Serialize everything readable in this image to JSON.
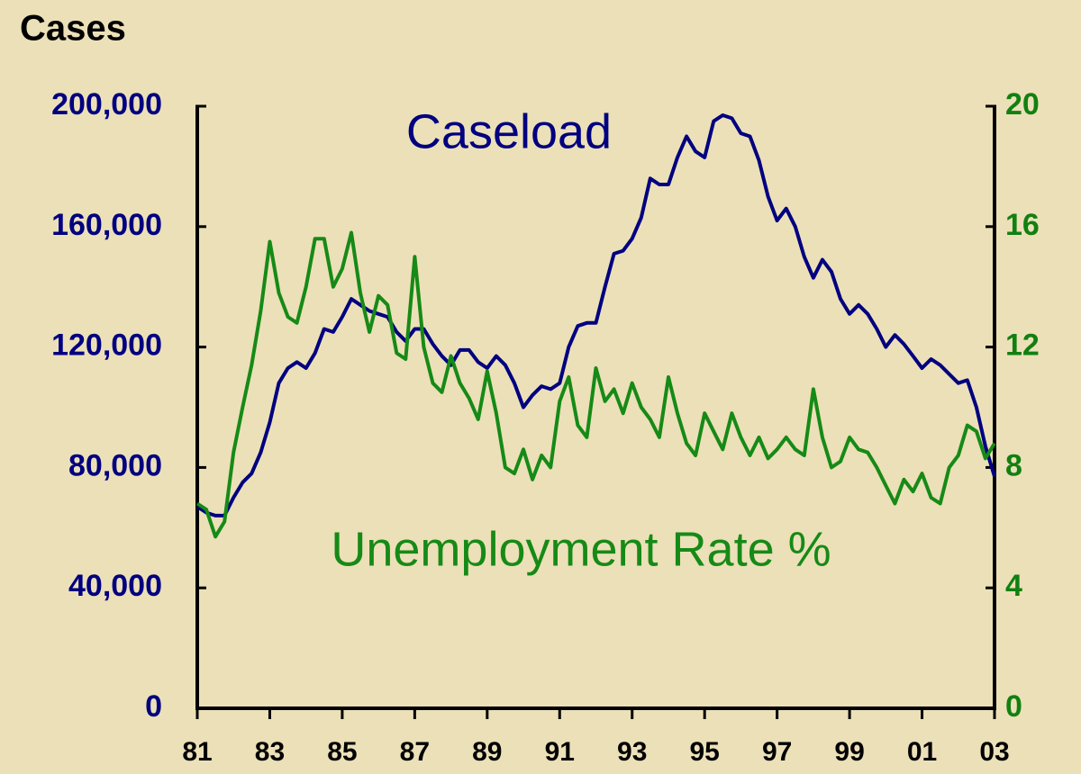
{
  "chart_data": {
    "type": "line",
    "y_label": "Cases",
    "x": [
      1981,
      1981.25,
      1981.5,
      1981.75,
      1982,
      1982.25,
      1982.5,
      1982.75,
      1983,
      1983.25,
      1983.5,
      1983.75,
      1984,
      1984.25,
      1984.5,
      1984.75,
      1985,
      1985.25,
      1985.5,
      1985.75,
      1986,
      1986.25,
      1986.5,
      1986.75,
      1987,
      1987.25,
      1987.5,
      1987.75,
      1988,
      1988.25,
      1988.5,
      1988.75,
      1989,
      1989.25,
      1989.5,
      1989.75,
      1990,
      1990.25,
      1990.5,
      1990.75,
      1991,
      1991.25,
      1991.5,
      1991.75,
      1992,
      1992.25,
      1992.5,
      1992.75,
      1993,
      1993.25,
      1993.5,
      1993.75,
      1994,
      1994.25,
      1994.5,
      1994.75,
      1995,
      1995.25,
      1995.5,
      1995.75,
      1996,
      1996.25,
      1996.5,
      1996.75,
      1997,
      1997.25,
      1997.5,
      1997.75,
      1998,
      1998.25,
      1998.5,
      1998.75,
      1999,
      1999.25,
      1999.5,
      1999.75,
      2000,
      2000.25,
      2000.5,
      2000.75,
      2001,
      2001.25,
      2001.5,
      2001.75,
      2002,
      2002.25,
      2002.5,
      2002.75,
      2003
    ],
    "series": [
      {
        "name": "Caseload",
        "color": "#000080",
        "axis": "y",
        "values": [
          67000,
          65000,
          64000,
          64000,
          70000,
          75000,
          78000,
          85000,
          95000,
          108000,
          113000,
          115000,
          113000,
          118000,
          126000,
          125000,
          130000,
          136000,
          134000,
          132000,
          131000,
          130000,
          125000,
          122000,
          126000,
          126000,
          121000,
          117000,
          114000,
          119000,
          119000,
          115000,
          113000,
          117000,
          114000,
          108000,
          100000,
          104000,
          107000,
          106000,
          108000,
          120000,
          127000,
          128000,
          128000,
          140000,
          151000,
          152000,
          156000,
          163000,
          176000,
          174000,
          174000,
          183000,
          190000,
          185000,
          183000,
          195000,
          197000,
          196000,
          191000,
          190000,
          182000,
          170000,
          162000,
          166000,
          160000,
          150000,
          143000,
          149000,
          145000,
          136000,
          131000,
          134000,
          131000,
          126000,
          120000,
          124000,
          121000,
          117000,
          113000,
          116000,
          114000,
          111000,
          108000,
          109000,
          100000,
          87000,
          77000
        ]
      },
      {
        "name": "Unemployment Rate %",
        "color": "#168a16",
        "axis": "y2",
        "values": [
          6.8,
          6.6,
          5.7,
          6.2,
          8.5,
          10.0,
          11.4,
          13.2,
          15.5,
          13.8,
          13.0,
          12.8,
          14.0,
          15.6,
          15.6,
          14.0,
          14.6,
          15.8,
          13.8,
          12.5,
          13.7,
          13.4,
          11.8,
          11.6,
          15.0,
          12.0,
          10.8,
          10.5,
          11.7,
          10.8,
          10.3,
          9.6,
          11.2,
          9.8,
          8.0,
          7.8,
          8.6,
          7.6,
          8.4,
          8.0,
          10.2,
          11.0,
          9.4,
          9.0,
          11.3,
          10.2,
          10.6,
          9.8,
          10.8,
          10.0,
          9.6,
          9.0,
          11.0,
          9.8,
          8.8,
          8.4,
          9.8,
          9.2,
          8.6,
          9.8,
          9.0,
          8.4,
          9.0,
          8.3,
          8.6,
          9.0,
          8.6,
          8.4,
          10.6,
          9.0,
          8.0,
          8.2,
          9.0,
          8.6,
          8.5,
          8.0,
          7.4,
          6.8,
          7.6,
          7.2,
          7.8,
          7.0,
          6.8,
          8.0,
          8.4,
          9.4,
          9.2,
          8.3,
          8.8
        ]
      }
    ],
    "xlim": [
      1981,
      2003
    ],
    "xticks": [
      {
        "value": 1981,
        "label": "81"
      },
      {
        "value": 1983,
        "label": "83"
      },
      {
        "value": 1985,
        "label": "85"
      },
      {
        "value": 1987,
        "label": "87"
      },
      {
        "value": 1989,
        "label": "89"
      },
      {
        "value": 1991,
        "label": "91"
      },
      {
        "value": 1993,
        "label": "93"
      },
      {
        "value": 1995,
        "label": "95"
      },
      {
        "value": 1997,
        "label": "97"
      },
      {
        "value": 1999,
        "label": "99"
      },
      {
        "value": 2001,
        "label": "01"
      },
      {
        "value": 2003,
        "label": "03"
      }
    ],
    "ylim": [
      0,
      200000
    ],
    "yticks": [
      0,
      {
        "value": 40000,
        "label": "40,000"
      },
      {
        "value": 80000,
        "label": "80,000"
      },
      {
        "value": 120000,
        "label": "120,000"
      },
      {
        "value": 160000,
        "label": "160,000"
      },
      {
        "value": 200000,
        "label": "200,000"
      }
    ],
    "y2lim": [
      0,
      20
    ],
    "y2ticks": [
      0,
      4,
      8,
      12,
      16,
      20
    ]
  }
}
